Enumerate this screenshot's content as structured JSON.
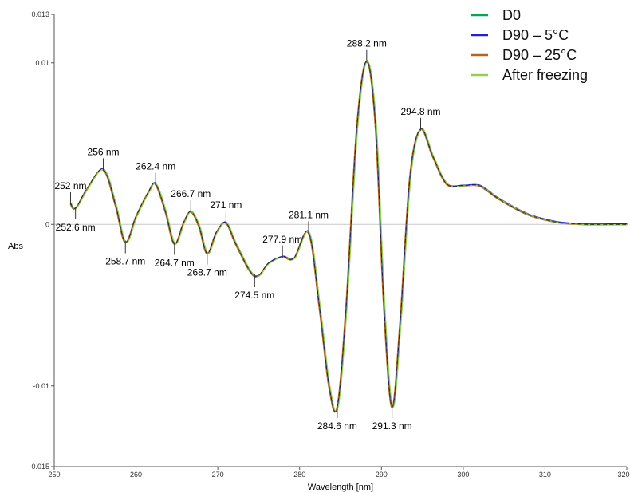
{
  "chart_data": {
    "type": "line",
    "title": "",
    "xlabel": "Wavelength [nm]",
    "ylabel": "Abs",
    "xlim": [
      250,
      320
    ],
    "ylim": [
      -0.015,
      0.013
    ],
    "grid": false,
    "zero_line": true,
    "legend_position": "top-right",
    "x_ticks": [
      250,
      260,
      270,
      280,
      290,
      300,
      310,
      320
    ],
    "x_tick_labels": [
      "250",
      "260",
      "270",
      "280",
      "290",
      "300",
      "310",
      "320"
    ],
    "y_ticks": [
      -0.015,
      -0.01,
      0,
      0.01,
      0.013
    ],
    "y_tick_labels": [
      "-0.015",
      "-0.01",
      "0",
      "0.01",
      "0.013"
    ],
    "series": [
      {
        "name": "D0",
        "color": "#00a651"
      },
      {
        "name": "D90 – 5°C",
        "color": "#1f1fd6"
      },
      {
        "name": "D90 – 25°C",
        "color": "#b5651d"
      },
      {
        "name": "After freezing",
        "color": "#8fd14f"
      }
    ],
    "curve": {
      "x": [
        252.0,
        252.6,
        254.0,
        256.0,
        257.5,
        258.7,
        260.0,
        261.5,
        262.4,
        263.6,
        264.7,
        265.8,
        266.7,
        267.7,
        268.7,
        269.8,
        271.0,
        272.3,
        274.5,
        276.2,
        277.9,
        279.3,
        281.1,
        282.4,
        283.6,
        284.6,
        285.7,
        287.0,
        288.2,
        289.3,
        290.3,
        291.3,
        292.3,
        293.5,
        294.8,
        296.3,
        298.0,
        300.0,
        302.0,
        304.0,
        306.0,
        308.0,
        310.0,
        312.0,
        315.0,
        318.0,
        320.0
      ],
      "y": [
        0.0013,
        0.001,
        0.0022,
        0.0034,
        0.0012,
        -0.0011,
        0.0005,
        0.002,
        0.0025,
        0.0008,
        -0.0012,
        0.0001,
        0.0008,
        -0.0001,
        -0.0018,
        -0.0005,
        0.0001,
        -0.0013,
        -0.0032,
        -0.0024,
        -0.002,
        -0.0021,
        -0.0005,
        -0.005,
        -0.01,
        -0.0113,
        -0.005,
        0.006,
        0.0101,
        0.006,
        -0.005,
        -0.0113,
        -0.006,
        0.003,
        0.0059,
        0.0042,
        0.0025,
        0.0024,
        0.0024,
        0.0017,
        0.0011,
        0.0006,
        0.0003,
        0.0001,
        0.0,
        0.0,
        0.0
      ]
    },
    "annotations": [
      {
        "text": "252 nm",
        "x": 252.0,
        "y": 0.0013,
        "side": "above"
      },
      {
        "text": "252.6 nm",
        "x": 252.6,
        "y": 0.001,
        "side": "below"
      },
      {
        "text": "256 nm",
        "x": 256.0,
        "y": 0.0034,
        "side": "above"
      },
      {
        "text": "258.7 nm",
        "x": 258.7,
        "y": -0.0011,
        "side": "below"
      },
      {
        "text": "262.4 nm",
        "x": 262.4,
        "y": 0.0025,
        "side": "above"
      },
      {
        "text": "264.7 nm",
        "x": 264.7,
        "y": -0.0012,
        "side": "below"
      },
      {
        "text": "266.7 nm",
        "x": 266.7,
        "y": 0.0008,
        "side": "above"
      },
      {
        "text": "268.7 nm",
        "x": 268.7,
        "y": -0.0018,
        "side": "below"
      },
      {
        "text": "271 nm",
        "x": 271.0,
        "y": 0.0001,
        "side": "above"
      },
      {
        "text": "274.5 nm",
        "x": 274.5,
        "y": -0.0032,
        "side": "below"
      },
      {
        "text": "277.9 nm",
        "x": 277.9,
        "y": -0.002,
        "side": "above"
      },
      {
        "text": "281.1 nm",
        "x": 281.1,
        "y": -0.0005,
        "side": "above"
      },
      {
        "text": "284.6 nm",
        "x": 284.6,
        "y": -0.0113,
        "side": "below"
      },
      {
        "text": "288.2 nm",
        "x": 288.2,
        "y": 0.0101,
        "side": "above"
      },
      {
        "text": "291.3 nm",
        "x": 291.3,
        "y": -0.0113,
        "side": "below"
      },
      {
        "text": "294.8 nm",
        "x": 294.8,
        "y": 0.0059,
        "side": "above"
      }
    ]
  }
}
